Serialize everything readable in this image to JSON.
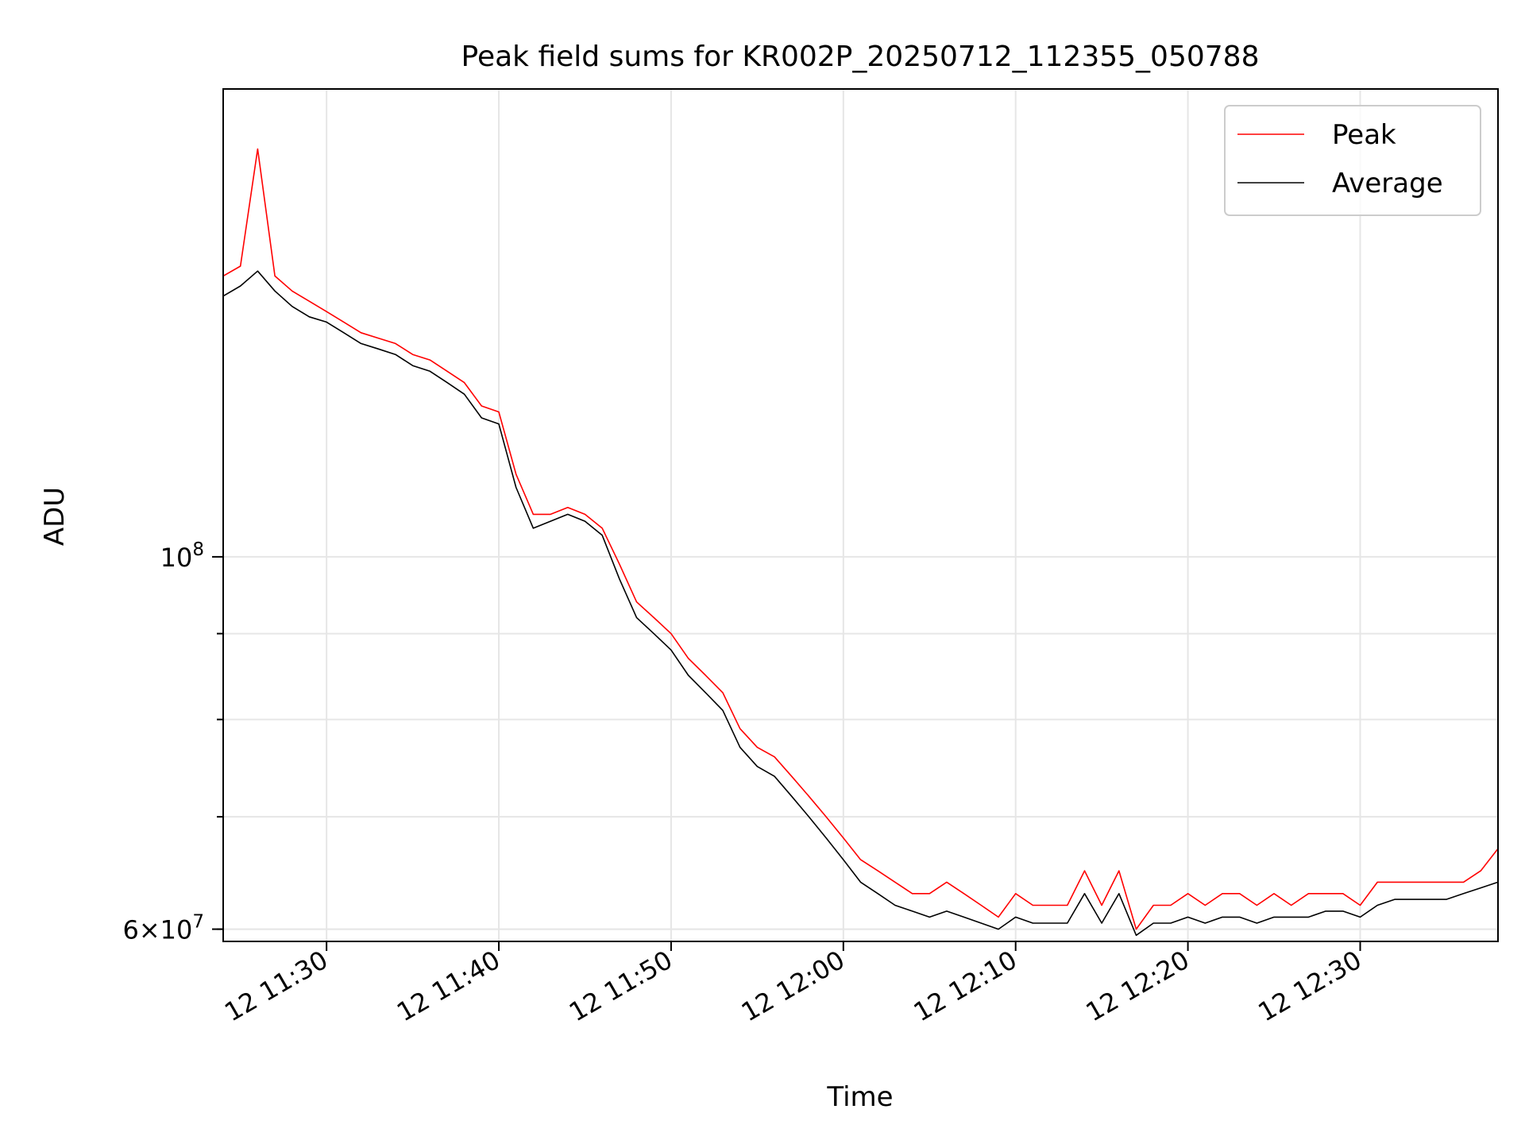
{
  "chart_data": {
    "type": "line",
    "title": "Peak field sums for KR002P_20250712_112355_050788",
    "xlabel": "Time",
    "ylabel": "ADU",
    "xlim": [
      "2025-07-12 11:24:00",
      "2025-07-12 12:38:00"
    ],
    "ylim": [
      59000000,
      190000000
    ],
    "yscale": "log",
    "grid": true,
    "legend_position": "top-right",
    "x_ticks": [
      "12 11:30",
      "12 11:40",
      "12 11:50",
      "12 12:00",
      "12 12:10",
      "12 12:20",
      "12 12:30"
    ],
    "y_tick_labels": [
      {
        "value": 100000000,
        "base": "10",
        "exp": "8"
      },
      {
        "value": 60000000,
        "base": "6×10",
        "exp": "7"
      }
    ],
    "y_minor_ticks": [
      60000000,
      70000000,
      80000000,
      90000000
    ],
    "x": [
      "11:24",
      "11:25",
      "11:26",
      "11:27",
      "11:28",
      "11:29",
      "11:30",
      "11:31",
      "11:32",
      "11:33",
      "11:34",
      "11:35",
      "11:36",
      "11:37",
      "11:38",
      "11:39",
      "11:40",
      "11:41",
      "11:42",
      "11:43",
      "11:44",
      "11:45",
      "11:46",
      "11:47",
      "11:48",
      "11:49",
      "11:50",
      "11:51",
      "11:52",
      "11:53",
      "11:54",
      "11:55",
      "11:56",
      "11:57",
      "11:58",
      "11:59",
      "12:00",
      "12:01",
      "12:02",
      "12:03",
      "12:04",
      "12:05",
      "12:06",
      "12:07",
      "12:08",
      "12:09",
      "12:10",
      "12:11",
      "12:12",
      "12:13",
      "12:14",
      "12:15",
      "12:16",
      "12:17",
      "12:18",
      "12:19",
      "12:20",
      "12:21",
      "12:22",
      "12:23",
      "12:24",
      "12:25",
      "12:26",
      "12:27",
      "12:28",
      "12:29",
      "12:30",
      "12:31",
      "12:32",
      "12:33",
      "12:34",
      "12:35",
      "12:36",
      "12:37",
      "12:38"
    ],
    "series": [
      {
        "name": "Peak",
        "color": "#ff0000",
        "values": [
          147000000,
          149000000,
          175000000,
          147000000,
          144000000,
          142000000,
          140000000,
          138000000,
          136000000,
          135000000,
          134000000,
          132000000,
          131000000,
          129000000,
          127000000,
          123000000,
          122000000,
          112000000,
          106000000,
          106000000,
          107000000,
          106000000,
          104000000,
          99000000,
          94000000,
          92000000,
          90000000,
          87000000,
          85000000,
          83000000,
          79000000,
          77000000,
          76000000,
          74000000,
          72000000,
          70000000,
          68000000,
          66000000,
          65000000,
          64000000,
          63000000,
          63000000,
          64000000,
          63000000,
          62000000,
          61000000,
          63000000,
          62000000,
          62000000,
          62000000,
          65000000,
          62000000,
          65000000,
          60000000,
          62000000,
          62000000,
          63000000,
          62000000,
          63000000,
          63000000,
          62000000,
          63000000,
          62000000,
          63000000,
          63000000,
          63000000,
          62000000,
          64000000,
          64000000,
          64000000,
          64000000,
          64000000,
          64000000,
          65000000,
          67000000
        ]
      },
      {
        "name": "Average",
        "color": "#000000",
        "values": [
          143000000,
          145000000,
          148000000,
          144000000,
          141000000,
          139000000,
          138000000,
          136000000,
          134000000,
          133000000,
          132000000,
          130000000,
          129000000,
          127000000,
          125000000,
          121000000,
          120000000,
          110000000,
          104000000,
          105000000,
          106000000,
          105000000,
          103000000,
          97000000,
          92000000,
          90000000,
          88000000,
          85000000,
          83000000,
          81000000,
          77000000,
          75000000,
          74000000,
          72000000,
          70000000,
          68000000,
          66000000,
          64000000,
          63000000,
          62000000,
          61500000,
          61000000,
          61500000,
          61000000,
          60500000,
          60000000,
          61000000,
          60500000,
          60500000,
          60500000,
          63000000,
          60500000,
          63000000,
          59500000,
          60500000,
          60500000,
          61000000,
          60500000,
          61000000,
          61000000,
          60500000,
          61000000,
          61000000,
          61000000,
          61500000,
          61500000,
          61000000,
          62000000,
          62500000,
          62500000,
          62500000,
          62500000,
          63000000,
          63500000,
          64000000
        ]
      }
    ]
  }
}
